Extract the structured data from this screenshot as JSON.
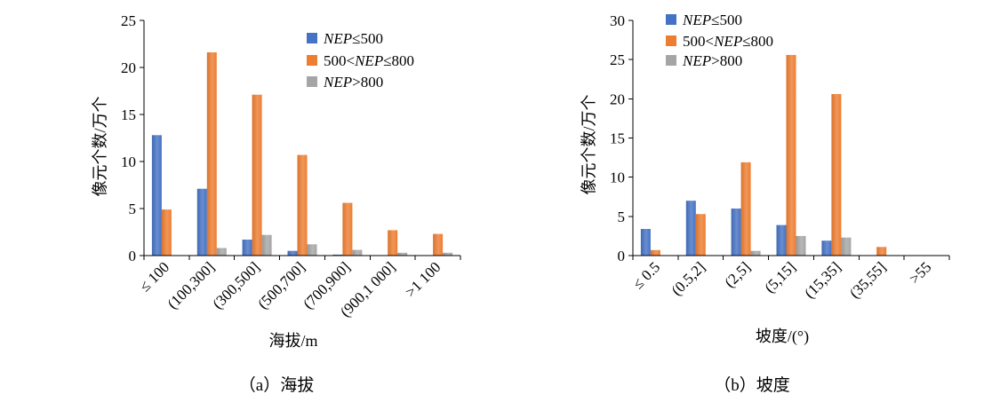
{
  "chart_data": [
    {
      "type": "bar",
      "caption": "（a）海拔",
      "xlabel": "海拔/m",
      "ylabel": "像元个数/万个",
      "ylim": [
        0,
        25
      ],
      "yticks": [
        0,
        5,
        10,
        15,
        20,
        25
      ],
      "grid": false,
      "legend_position": "top-right",
      "categories": [
        "≤ 100",
        "(100,300]",
        "(300,500]",
        "(500,700]",
        "(700,900]",
        "(900,1 000]",
        ">1 100"
      ],
      "series": [
        {
          "name": "NEP≤500",
          "color": "#4472C4",
          "values": [
            12.8,
            7.1,
            1.7,
            0.5,
            0.1,
            0,
            0
          ]
        },
        {
          "name": "500<NEP≤800",
          "color": "#ED7D31",
          "values": [
            4.9,
            21.6,
            17.1,
            10.7,
            5.6,
            2.7,
            2.3
          ]
        },
        {
          "name": "NEP>800",
          "color": "#A5A5A5",
          "values": [
            0,
            0.8,
            2.2,
            1.2,
            0.6,
            0.3,
            0.3
          ]
        }
      ]
    },
    {
      "type": "bar",
      "caption": "（b）坡度",
      "xlabel": "坡度/(°)",
      "ylabel": "像元个数/万个",
      "ylim": [
        0,
        30
      ],
      "yticks": [
        0,
        5,
        10,
        15,
        20,
        25,
        30
      ],
      "grid": false,
      "legend_position": "top-left",
      "categories": [
        "≤ 0.5",
        "(0.5,2]",
        "(2,5]",
        "(5,15]",
        "(15,35]",
        "(35,55]",
        ">55"
      ],
      "series": [
        {
          "name": "NEP≤500",
          "color": "#4472C4",
          "values": [
            3.4,
            7.0,
            6.0,
            3.9,
            1.9,
            0,
            0
          ]
        },
        {
          "name": "500<NEP≤800",
          "color": "#ED7D31",
          "values": [
            0.7,
            5.3,
            11.9,
            25.6,
            20.6,
            1.1,
            0
          ]
        },
        {
          "name": "NEP>800",
          "color": "#A5A5A5",
          "values": [
            0,
            0,
            0.6,
            2.5,
            2.3,
            0,
            0
          ]
        }
      ]
    }
  ]
}
